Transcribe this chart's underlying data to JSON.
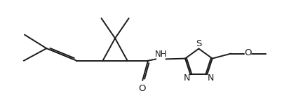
{
  "bg_color": "#ffffff",
  "line_color": "#1a1a1a",
  "line_width": 1.4,
  "font_size": 8.5,
  "fig_width": 4.22,
  "fig_height": 1.5,
  "dpi": 100,
  "xlim": [
    0,
    10.5
  ],
  "ylim": [
    0,
    3.8
  ]
}
